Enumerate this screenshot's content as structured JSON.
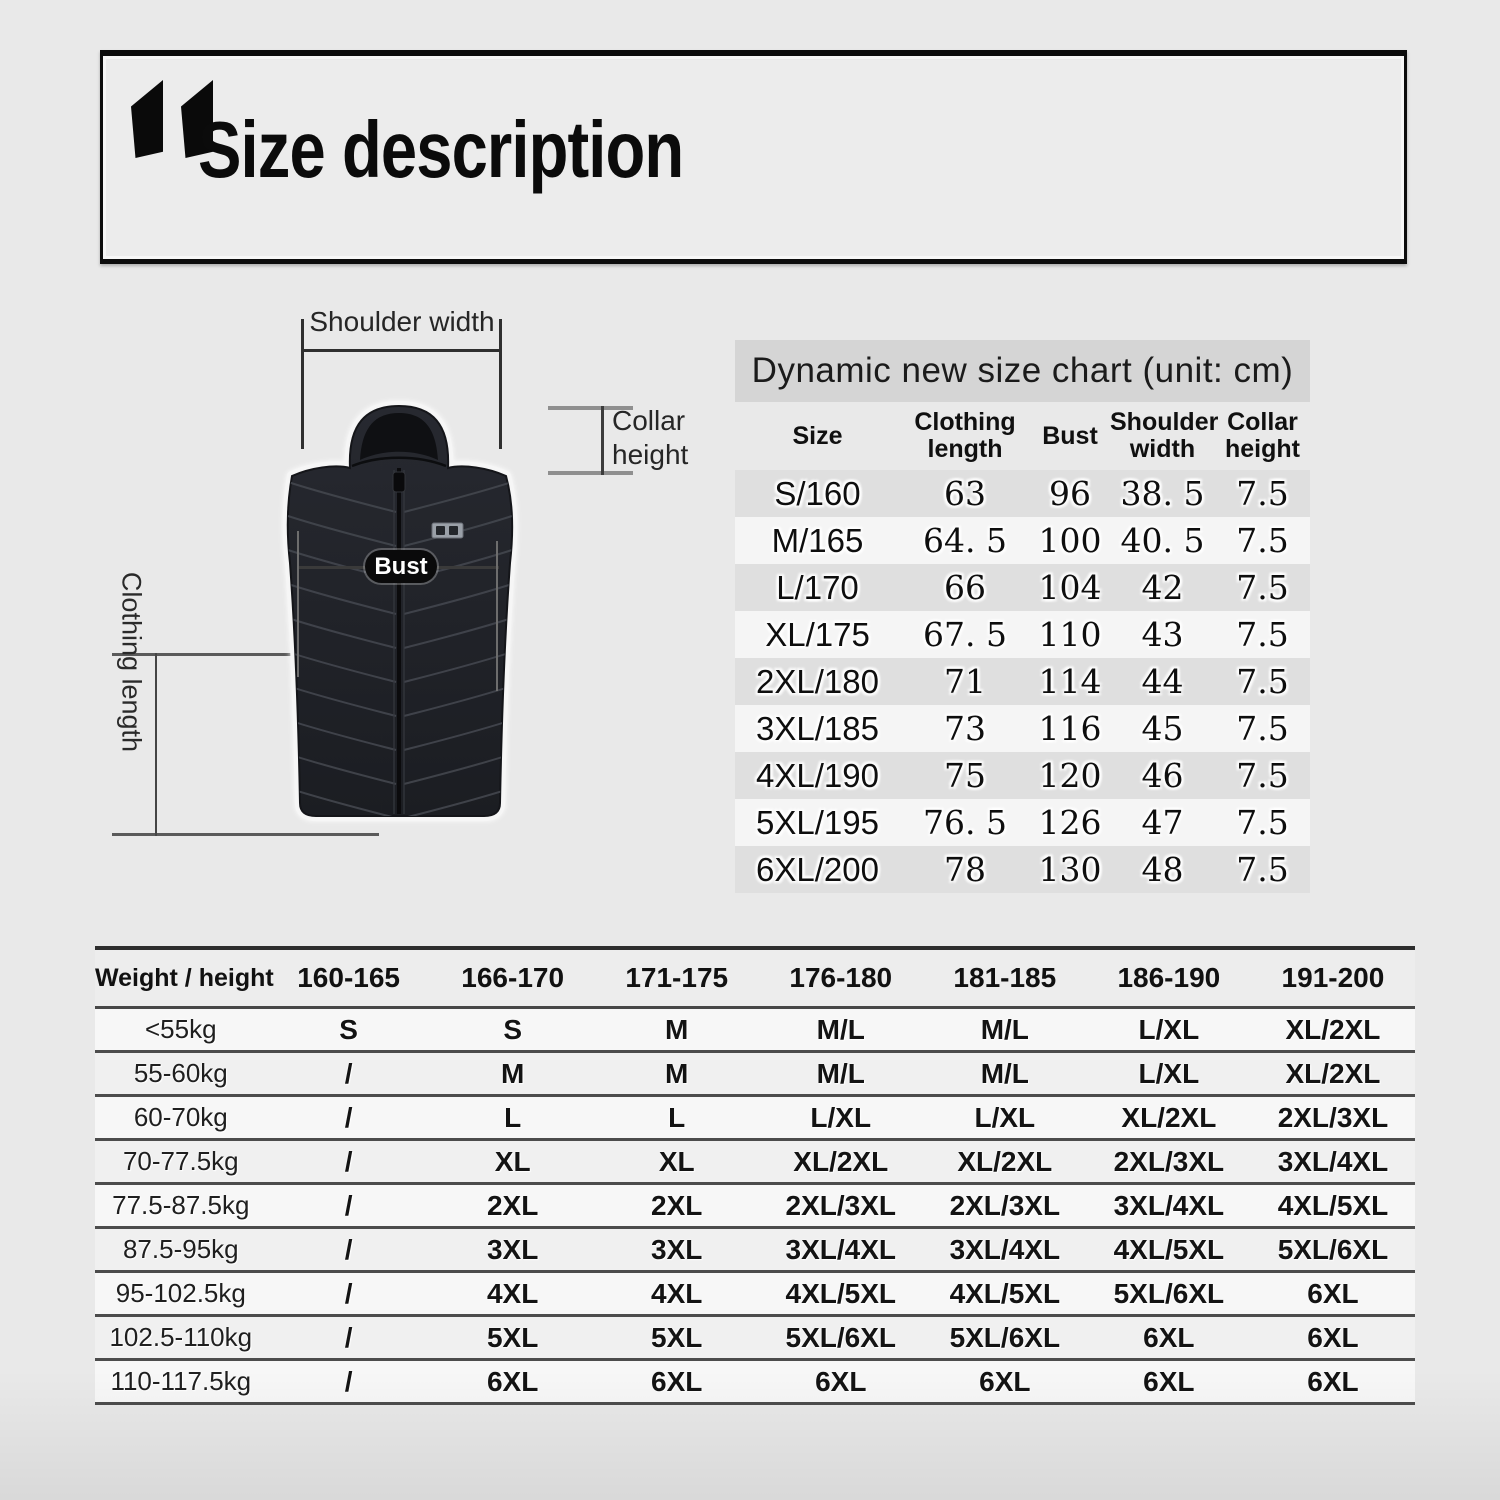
{
  "header": {
    "title": "Size description"
  },
  "diagram": {
    "shoulder_width_label": "Shoulder width",
    "collar_height_label": "Collar height",
    "bust_label": "Bust",
    "clothing_length_label": "Clothing length"
  },
  "size_chart": {
    "title": "Dynamic new size chart (unit: cm)",
    "headers": [
      "Size",
      "Clothing length",
      "Bust",
      "Shoulder width",
      "Collar height"
    ],
    "rows": [
      [
        "S/160",
        "63",
        "96",
        "38. 5",
        "7.5"
      ],
      [
        "M/165",
        "64. 5",
        "100",
        "40. 5",
        "7.5"
      ],
      [
        "L/170",
        "66",
        "104",
        "42",
        "7.5"
      ],
      [
        "XL/175",
        "67. 5",
        "110",
        "43",
        "7.5"
      ],
      [
        "2XL/180",
        "71",
        "114",
        "44",
        "7.5"
      ],
      [
        "3XL/185",
        "73",
        "116",
        "45",
        "7.5"
      ],
      [
        "4XL/190",
        "75",
        "120",
        "46",
        "7.5"
      ],
      [
        "5XL/195",
        "76. 5",
        "126",
        "47",
        "7.5"
      ],
      [
        "6XL/200",
        "78",
        "130",
        "48",
        "7.5"
      ]
    ]
  },
  "fit_table": {
    "headers": [
      "Weight / height",
      "160-165",
      "166-170",
      "171-175",
      "176-180",
      "181-185",
      "186-190",
      "191-200"
    ],
    "rows": [
      [
        "<55kg",
        "S",
        "S",
        "M",
        "M/L",
        "M/L",
        "L/XL",
        "XL/2XL"
      ],
      [
        "55-60kg",
        "/",
        "M",
        "M",
        "M/L",
        "M/L",
        "L/XL",
        "XL/2XL"
      ],
      [
        "60-70kg",
        "/",
        "L",
        "L",
        "L/XL",
        "L/XL",
        "XL/2XL",
        "2XL/3XL"
      ],
      [
        "70-77.5kg",
        "/",
        "XL",
        "XL",
        "XL/2XL",
        "XL/2XL",
        "2XL/3XL",
        "3XL/4XL"
      ],
      [
        "77.5-87.5kg",
        "/",
        "2XL",
        "2XL",
        "2XL/3XL",
        "2XL/3XL",
        "3XL/4XL",
        "4XL/5XL"
      ],
      [
        "87.5-95kg",
        "/",
        "3XL",
        "3XL",
        "3XL/4XL",
        "3XL/4XL",
        "4XL/5XL",
        "5XL/6XL"
      ],
      [
        "95-102.5kg",
        "/",
        "4XL",
        "4XL",
        "4XL/5XL",
        "4XL/5XL",
        "5XL/6XL",
        "6XL"
      ],
      [
        "102.5-110kg",
        "/",
        "5XL",
        "5XL",
        "5XL/6XL",
        "5XL/6XL",
        "6XL",
        "6XL"
      ],
      [
        "110-117.5kg",
        "/",
        "6XL",
        "6XL",
        "6XL",
        "6XL",
        "6XL",
        "6XL"
      ]
    ]
  },
  "colors": {
    "page_bg": "#e9e9e9",
    "banner_bg": "#d5d5d5",
    "header_box_bg": "#ececec",
    "vest_body": "#212329",
    "pill_bg": "#0a0a0b",
    "line_dark": "#2f2f2f",
    "line_gray": "#8f8f8f"
  },
  "chart_data": [
    {
      "type": "table",
      "title": "Dynamic new size chart (unit: cm)",
      "columns": [
        "Size",
        "Clothing length",
        "Bust",
        "Shoulder width",
        "Collar height"
      ],
      "rows": [
        [
          "S/160",
          63,
          96,
          38.5,
          7.5
        ],
        [
          "M/165",
          64.5,
          100,
          40.5,
          7.5
        ],
        [
          "L/170",
          66,
          104,
          42,
          7.5
        ],
        [
          "XL/175",
          67.5,
          110,
          43,
          7.5
        ],
        [
          "2XL/180",
          71,
          114,
          44,
          7.5
        ],
        [
          "3XL/185",
          73,
          116,
          45,
          7.5
        ],
        [
          "4XL/190",
          75,
          120,
          46,
          7.5
        ],
        [
          "5XL/195",
          76.5,
          126,
          47,
          7.5
        ],
        [
          "6XL/200",
          78,
          130,
          48,
          7.5
        ]
      ]
    },
    {
      "type": "table",
      "columns": [
        "Weight / height",
        "160-165",
        "166-170",
        "171-175",
        "176-180",
        "181-185",
        "186-190",
        "191-200"
      ],
      "rows": [
        [
          "<55kg",
          "S",
          "S",
          "M",
          "M/L",
          "M/L",
          "L/XL",
          "XL/2XL"
        ],
        [
          "55-60kg",
          "/",
          "M",
          "M",
          "M/L",
          "M/L",
          "L/XL",
          "XL/2XL"
        ],
        [
          "60-70kg",
          "/",
          "L",
          "L",
          "L/XL",
          "L/XL",
          "XL/2XL",
          "2XL/3XL"
        ],
        [
          "70-77.5kg",
          "/",
          "XL",
          "XL",
          "XL/2XL",
          "XL/2XL",
          "2XL/3XL",
          "3XL/4XL"
        ],
        [
          "77.5-87.5kg",
          "/",
          "2XL",
          "2XL",
          "2XL/3XL",
          "2XL/3XL",
          "3XL/4XL",
          "4XL/5XL"
        ],
        [
          "87.5-95kg",
          "/",
          "3XL",
          "3XL",
          "3XL/4XL",
          "3XL/4XL",
          "4XL/5XL",
          "5XL/6XL"
        ],
        [
          "95-102.5kg",
          "/",
          "4XL",
          "4XL",
          "4XL/5XL",
          "4XL/5XL",
          "5XL/6XL",
          "6XL"
        ],
        [
          "102.5-110kg",
          "/",
          "5XL",
          "5XL",
          "5XL/6XL",
          "5XL/6XL",
          "6XL",
          "6XL"
        ],
        [
          "110-117.5kg",
          "/",
          "6XL",
          "6XL",
          "6XL",
          "6XL",
          "6XL",
          "6XL"
        ]
      ]
    }
  ]
}
